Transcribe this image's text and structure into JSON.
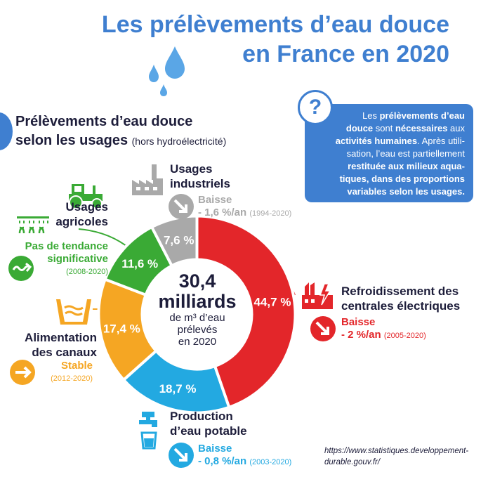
{
  "title_line1": "Les prélèvements d’eau douce",
  "title_line2": "en France en 2020",
  "section_title_line1": "Prélèvements d’eau douce",
  "section_title_line2": "selon les usages",
  "section_subtitle": "(hors hydroélectricité)",
  "info": {
    "l1a": "Les ",
    "l1b": "prélèvements d’eau",
    "l2a": "douce",
    "l2b": " sont ",
    "l2c": "nécessaires",
    "l2d": " aux",
    "l3a": "activités humaines",
    "l3b": ". Après utili-",
    "l4": "sation, l’eau est partiellement",
    "l5": "restituée aux milieux aqua-",
    "l6": "tiques, dans des proportions",
    "l7": "variables selon les usages."
  },
  "center": {
    "line1": "30,4",
    "line2": "milliards",
    "line3": "de m³ d’eau",
    "line4": "prélevés",
    "line5": "en 2020"
  },
  "chart_data": {
    "type": "pie",
    "title": "Les prélèvements d’eau douce en France en 2020",
    "total": "30,4 milliards de m³ d’eau prélevés en 2020",
    "slices": [
      {
        "name": "Refroidissement des centrales électriques",
        "value": 44.7,
        "label": "44,7 %",
        "color": "#e3262a",
        "trend": "Baisse",
        "change": "- 2 %/an",
        "period": "(2005-2020)"
      },
      {
        "name": "Production d’eau potable",
        "value": 18.7,
        "label": "18,7 %",
        "color": "#23a9e1",
        "trend": "Baisse",
        "change": "- 0,8 %/an",
        "period": "(2003-2020)"
      },
      {
        "name": "Alimentation des canaux",
        "value": 17.4,
        "label": "17,4 %",
        "color": "#f5a623",
        "trend": "Stable",
        "change": "",
        "period": "(2012-2020)"
      },
      {
        "name": "Usages agricoles",
        "value": 11.6,
        "label": "11,6 %",
        "color": "#3aaa35",
        "trend": "Pas de tendance significative",
        "change": "",
        "period": "(2008-2020)"
      },
      {
        "name": "Usages industriels",
        "value": 7.6,
        "label": "7,6 %",
        "color": "#a9a9a9",
        "trend": "Baisse",
        "change": "- 1,6 %/an",
        "period": "(1994-2020)"
      }
    ]
  },
  "labels": {
    "industrial_l1": "Usages",
    "industrial_l2": "industriels",
    "industrial_trend": "Baisse",
    "industrial_change": "- 1,6 %/an",
    "industrial_period": "(1994-2020)",
    "power_l1": "Refroidissement des",
    "power_l2": "centrales électriques",
    "power_trend": "Baisse",
    "power_change": "- 2 %/an",
    "power_period": "(2005-2020)",
    "water_l1": "Production",
    "water_l2": "d’eau potable",
    "water_trend": "Baisse",
    "water_change": "- 0,8 %/an",
    "water_period": "(2003-2020)",
    "canal_l1": "Alimentation",
    "canal_l2": "des canaux",
    "canal_trend": "Stable",
    "canal_period": "(2012-2020)",
    "agri_l1": "Usages",
    "agri_l2": "agricoles",
    "agri_trend1": "Pas de tendance",
    "agri_trend2": "significative",
    "agri_period": "(2008-2020)"
  },
  "source_line1": "https://www.statistiques.developpement-",
  "source_line2": "durable.gouv.fr/",
  "colors": {
    "blue": "#3f7fd0",
    "red": "#e3262a",
    "lightblue": "#23a9e1",
    "orange": "#f5a623",
    "green": "#3aaa35",
    "grey": "#a9a9a9"
  }
}
